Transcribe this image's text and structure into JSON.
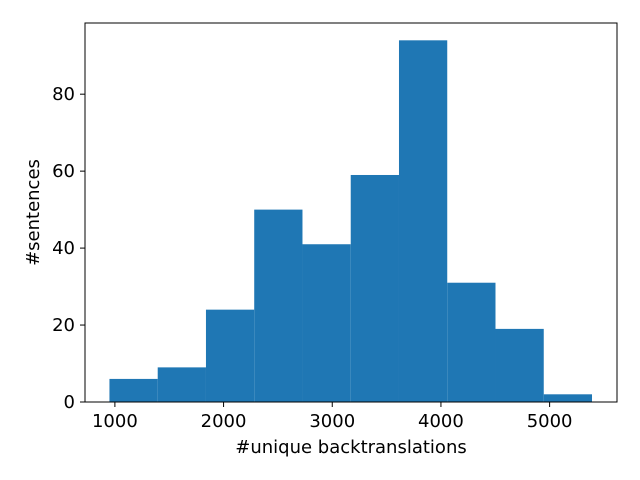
{
  "chart_data": {
    "type": "histogram",
    "title": "",
    "xlabel": "#unique backtranslations",
    "ylabel": "#sentences",
    "xlim": [
      725,
      5620
    ],
    "ylim": [
      0,
      98.5
    ],
    "bins": [
      {
        "start": 950,
        "end": 1394,
        "count": 6
      },
      {
        "start": 1394,
        "end": 1838,
        "count": 9
      },
      {
        "start": 1838,
        "end": 2282,
        "count": 24
      },
      {
        "start": 2282,
        "end": 2726,
        "count": 50
      },
      {
        "start": 2726,
        "end": 3170,
        "count": 41
      },
      {
        "start": 3170,
        "end": 3614,
        "count": 59
      },
      {
        "start": 3614,
        "end": 4058,
        "count": 94
      },
      {
        "start": 4058,
        "end": 4502,
        "count": 31
      },
      {
        "start": 4502,
        "end": 4946,
        "count": 19
      },
      {
        "start": 4946,
        "end": 5390,
        "count": 2
      }
    ],
    "x_ticks": [
      1000,
      2000,
      3000,
      4000,
      5000
    ],
    "y_ticks": [
      0,
      20,
      40,
      60,
      80
    ],
    "bar_color": "#1f77b4",
    "grid": false,
    "legend": "none"
  }
}
